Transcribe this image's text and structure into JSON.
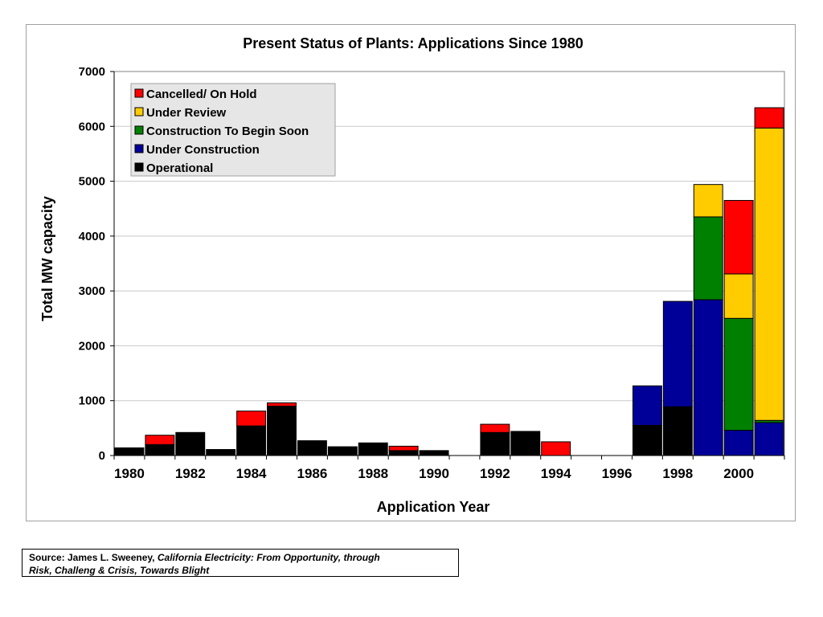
{
  "chart_data": {
    "type": "bar",
    "stacked": true,
    "title": "Present Status of Plants:  Applications Since 1980",
    "xlabel": "Application Year",
    "ylabel": "Total MW capacity",
    "ylim": [
      0,
      7000
    ],
    "yticks": [
      0,
      1000,
      2000,
      3000,
      4000,
      5000,
      6000,
      7000
    ],
    "xtick_labels": [
      "1980",
      "1982",
      "1984",
      "1986",
      "1988",
      "1990",
      "1992",
      "1994",
      "1996",
      "1998",
      "2000"
    ],
    "categories": [
      "1980",
      "1981",
      "1982",
      "1983",
      "1984",
      "1985",
      "1986",
      "1987",
      "1988",
      "1989",
      "1990",
      "1991",
      "1992",
      "1993",
      "1994",
      "1995",
      "1996",
      "1997",
      "1998",
      "1999",
      "2000",
      "2001"
    ],
    "grid": true,
    "legend_position": "top-left",
    "series": [
      {
        "name": "Operational",
        "color": "#000000",
        "values": [
          140,
          200,
          420,
          110,
          540,
          900,
          270,
          160,
          230,
          90,
          90,
          0,
          420,
          440,
          0,
          0,
          0,
          550,
          890,
          0,
          0,
          0
        ]
      },
      {
        "name": "Under Construction",
        "color": "#000099",
        "values": [
          0,
          0,
          0,
          0,
          0,
          0,
          0,
          0,
          0,
          0,
          0,
          0,
          0,
          0,
          0,
          0,
          0,
          720,
          1920,
          2840,
          460,
          600
        ]
      },
      {
        "name": "Construction To Begin Soon",
        "color": "#008000",
        "values": [
          0,
          0,
          0,
          0,
          0,
          0,
          0,
          0,
          0,
          0,
          0,
          0,
          0,
          0,
          0,
          0,
          0,
          0,
          0,
          1510,
          2040,
          40
        ]
      },
      {
        "name": "Under Review",
        "color": "#ffcc00",
        "values": [
          0,
          0,
          0,
          0,
          0,
          0,
          0,
          0,
          0,
          0,
          0,
          0,
          0,
          0,
          0,
          0,
          0,
          0,
          0,
          590,
          810,
          5330
        ]
      },
      {
        "name": "Cancelled/ On Hold",
        "color": "#ff0000",
        "values": [
          0,
          170,
          0,
          0,
          270,
          60,
          0,
          0,
          0,
          80,
          0,
          0,
          150,
          0,
          250,
          0,
          0,
          0,
          0,
          0,
          1340,
          370
        ]
      }
    ],
    "legend_order": [
      "Cancelled/ On Hold",
      "Under Review",
      "Construction To Begin Soon",
      "Under Construction",
      "Operational"
    ]
  },
  "source": {
    "prefix": "Source:  James L. Sweeney, ",
    "title_part1": "California Electricity:  From Opportunity, through",
    "title_part2": "Risk, Challeng & Crisis, Towards Blight"
  }
}
